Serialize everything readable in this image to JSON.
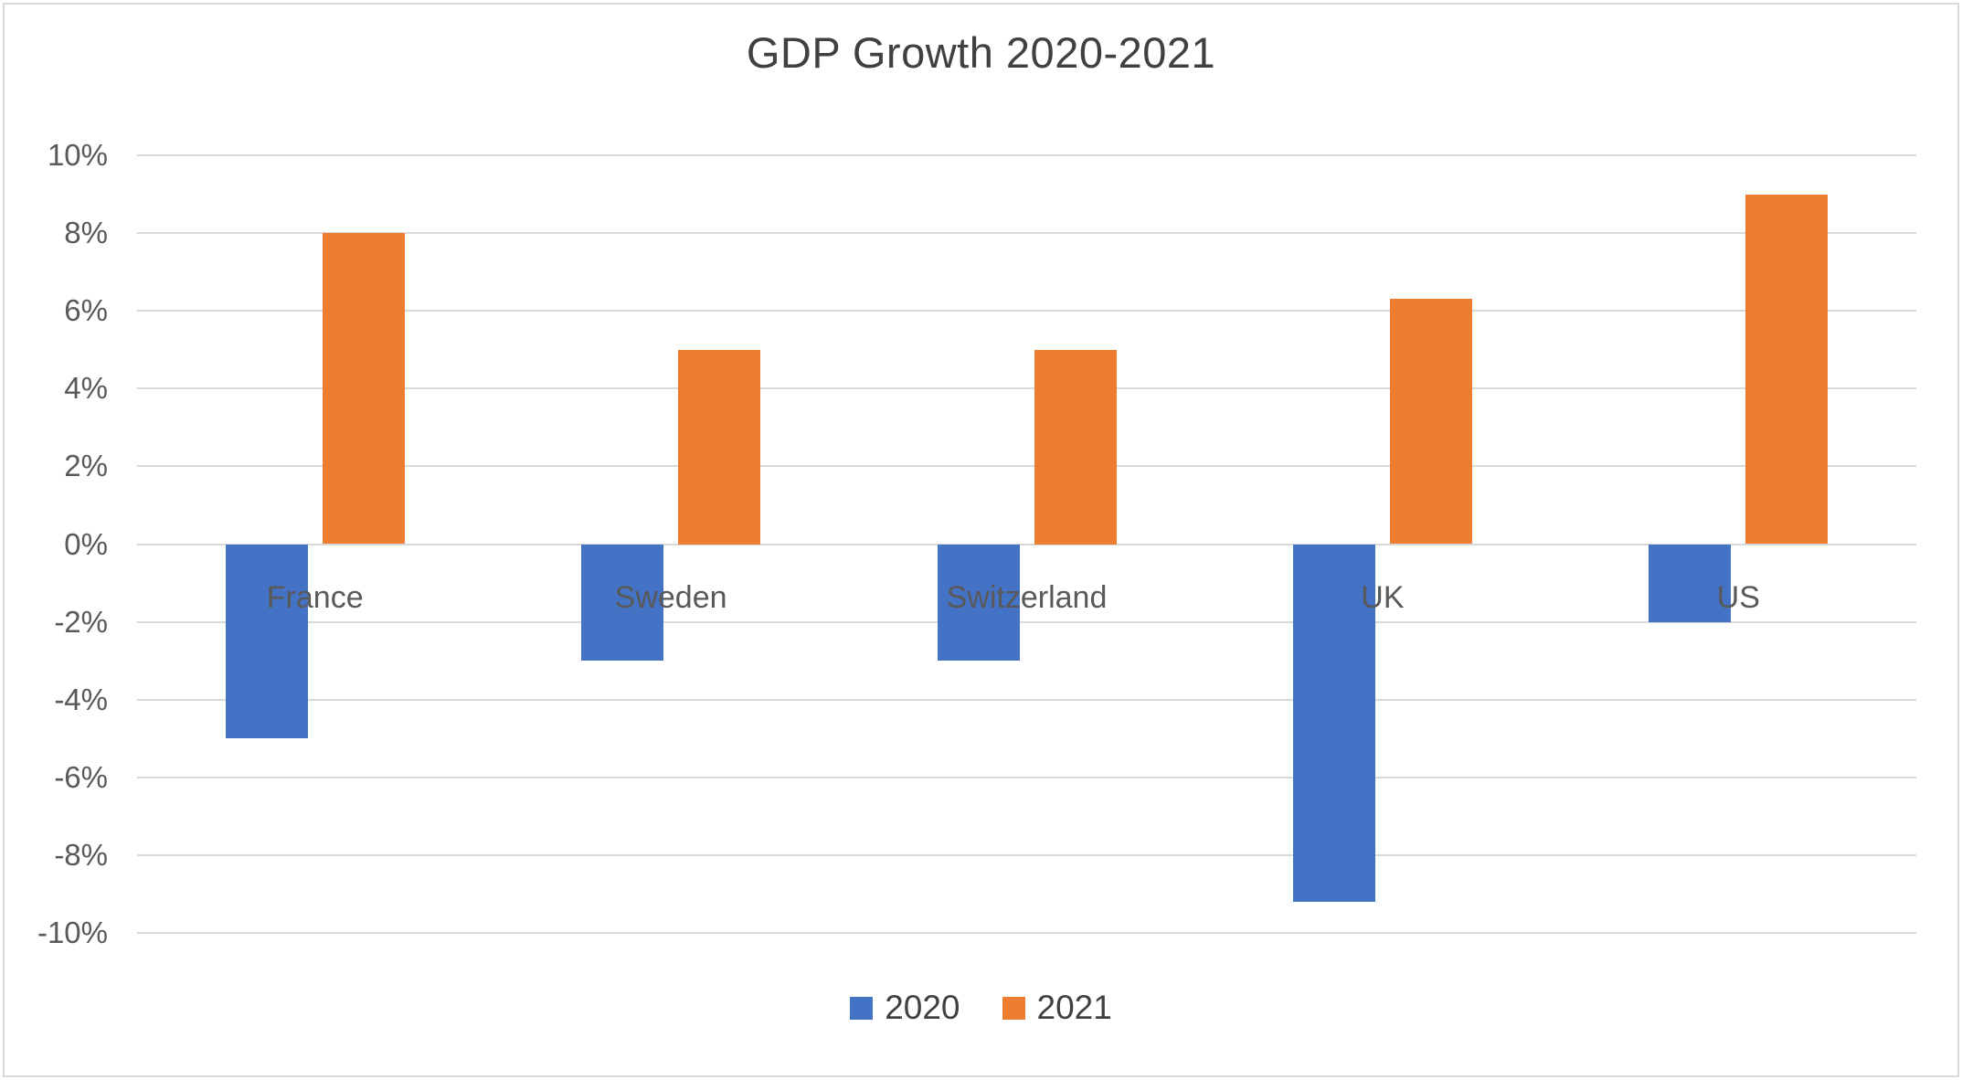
{
  "chart_data": {
    "type": "bar",
    "title": "GDP Growth 2020-2021",
    "categories": [
      "France",
      "Sweden",
      "Switzerland",
      "UK",
      "US"
    ],
    "series": [
      {
        "name": "2020",
        "color": "#4472C4",
        "values": [
          -5,
          -3,
          -3,
          -9.2,
          -2
        ]
      },
      {
        "name": "2021",
        "color": "#ED7D31",
        "values": [
          8,
          5,
          5,
          6.3,
          9
        ]
      }
    ],
    "y_axis": {
      "min": -10,
      "max": 10,
      "tick_step": 2,
      "tick_format": "percent",
      "tick_labels": [
        "10%",
        "8%",
        "6%",
        "4%",
        "2%",
        "0%",
        "-2%",
        "-4%",
        "-6%",
        "-8%",
        "-10%"
      ]
    },
    "x_axis": {
      "label_position": "below-zero-line"
    },
    "legend": {
      "position": "bottom-center"
    },
    "grid": true,
    "colors": {
      "grid": "#D9D9D9",
      "title_text": "#404040",
      "axis_text": "#595959",
      "legend_text": "#404040",
      "border": "#D9D9D9",
      "background": "#FFFFFF"
    }
  }
}
